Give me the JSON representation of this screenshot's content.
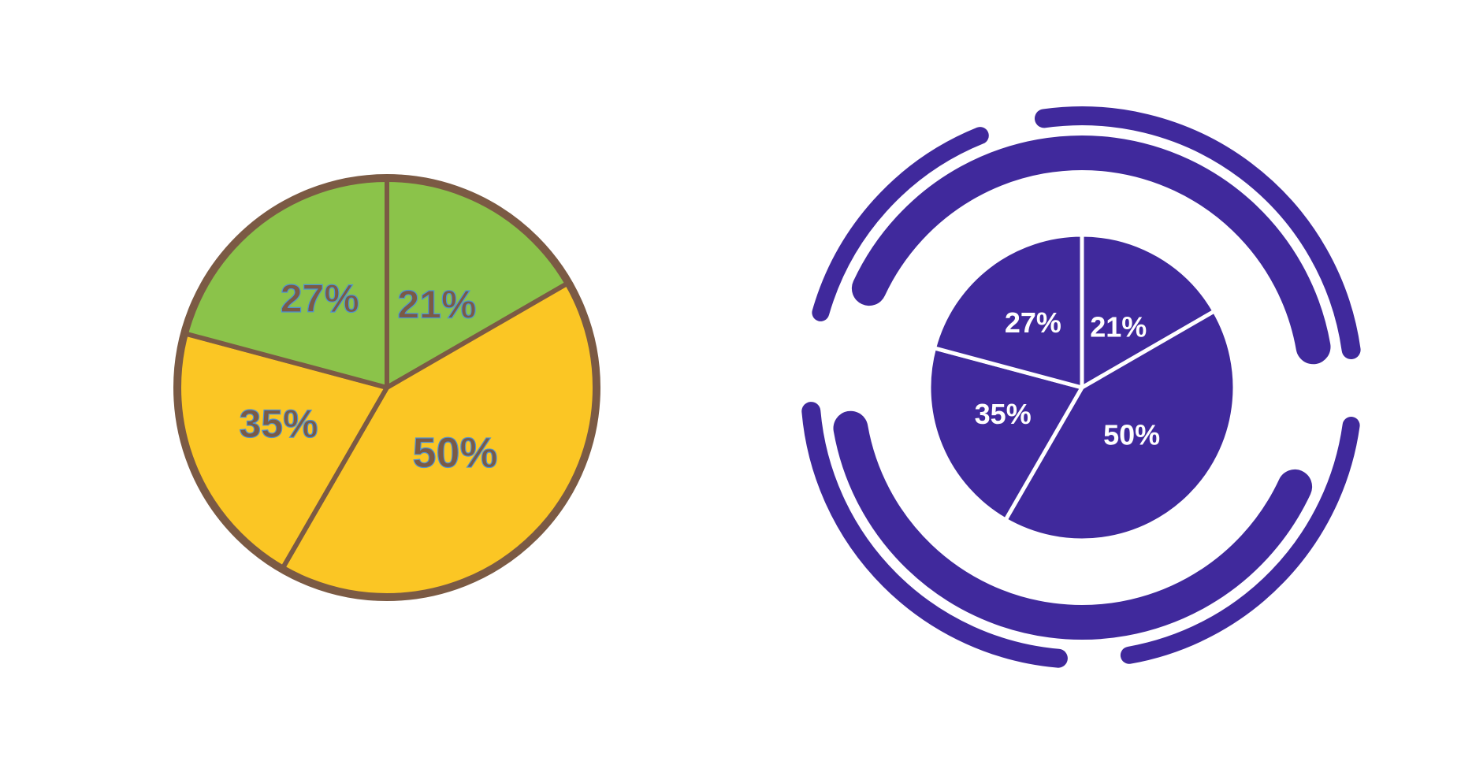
{
  "chart_data": [
    {
      "type": "pie",
      "slices": [
        {
          "label": "21%",
          "value": 21,
          "color": "#8bc34a"
        },
        {
          "label": "50%",
          "value": 50,
          "color": "#fbc624"
        },
        {
          "label": "35%",
          "value": 35,
          "color": "#fbc624"
        },
        {
          "label": "27%",
          "value": 27,
          "color": "#8bc34a"
        }
      ],
      "outline_color": "#7b5a44",
      "label_color": "#7b5a44",
      "accent_color": "#4a90d9"
    },
    {
      "type": "pie",
      "slices": [
        {
          "label": "21%",
          "value": 21,
          "color": "#40299c"
        },
        {
          "label": "50%",
          "value": 50,
          "color": "#40299c"
        },
        {
          "label": "35%",
          "value": 35,
          "color": "#40299c"
        },
        {
          "label": "27%",
          "value": 27,
          "color": "#40299c"
        }
      ],
      "divider_color": "#ffffff",
      "label_color": "#ffffff",
      "ring_color": "#40299c"
    }
  ]
}
